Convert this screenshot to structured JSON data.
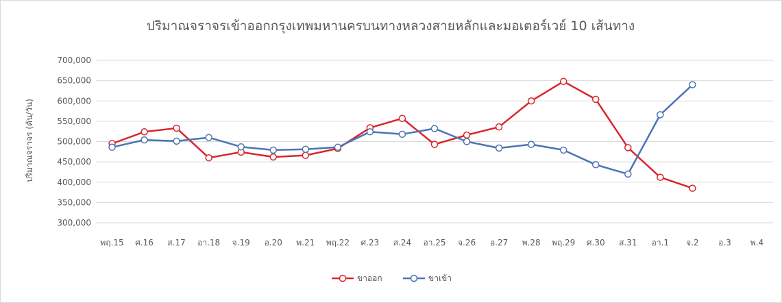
{
  "chart_data": {
    "type": "line",
    "title": "ปริมาณจราจรเข้าออกกรุงเทพมหานครบนทางหลวงสายหลักและมอเตอร์เวย์ 10 เส้นทาง",
    "xlabel": "",
    "ylabel": "ปริมาณจราจร (คัน/วัน)",
    "ylim": [
      300000,
      700000
    ],
    "yticks": [
      "300,000",
      "350,000",
      "400,000",
      "450,000",
      "500,000",
      "550,000",
      "600,000",
      "650,000",
      "700,000"
    ],
    "grid": true,
    "legend_position": "bottom",
    "categories": [
      "พฤ.15",
      "ศ.16",
      "ส.17",
      "อา.18",
      "จ.19",
      "อ.20",
      "พ.21",
      "พฤ.22",
      "ศ.23",
      "ส.24",
      "อา.25",
      "จ.26",
      "อ.27",
      "พ.28",
      "พฤ.29",
      "ศ.30",
      "ส.31",
      "อา.1",
      "จ.2",
      "อ.3",
      "พ.4"
    ],
    "series": [
      {
        "name": "ขาออก",
        "color": "#d9262b",
        "values": [
          495000,
          524000,
          533000,
          460000,
          474000,
          462000,
          466000,
          483000,
          534000,
          557000,
          493000,
          516000,
          536000,
          600000,
          648000,
          604000,
          485000,
          412000,
          385000,
          null,
          null
        ]
      },
      {
        "name": "ขาเข้า",
        "color": "#4a74b5",
        "values": [
          486000,
          504000,
          501000,
          510000,
          487000,
          479000,
          481000,
          486000,
          524000,
          518000,
          532000,
          500000,
          484000,
          493000,
          479000,
          443000,
          420000,
          566000,
          640000,
          null,
          null
        ]
      }
    ]
  }
}
